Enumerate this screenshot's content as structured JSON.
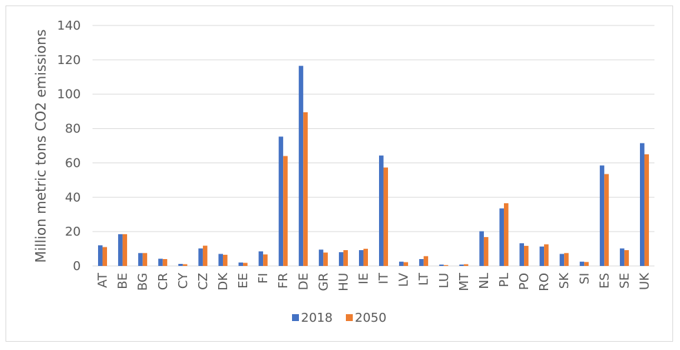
{
  "chart_data": {
    "type": "bar",
    "ylabel": "Million metric tons CO2 emissions",
    "ylim": [
      0,
      140
    ],
    "yticks": [
      "0",
      "20",
      "40",
      "60",
      "80",
      "100",
      "120",
      "140"
    ],
    "grid": true,
    "legend_position": "bottom",
    "categories": [
      "AT",
      "BE",
      "BG",
      "CR",
      "CY",
      "CZ",
      "DK",
      "EE",
      "FI",
      "FR",
      "DE",
      "GR",
      "HU",
      "IE",
      "IT",
      "LV",
      "LT",
      "LU",
      "MT",
      "NL",
      "PL",
      "PO",
      "RO",
      "SK",
      "SI",
      "ES",
      "SE",
      "UK"
    ],
    "series": [
      {
        "name": "2018",
        "color": "#4472c4",
        "values": [
          12,
          18.5,
          7.5,
          4.2,
          1.2,
          10.2,
          7,
          2,
          8.5,
          75.3,
          116.5,
          9.5,
          8,
          9.2,
          64.3,
          2.5,
          4,
          0.8,
          0.8,
          20.2,
          33.5,
          13.2,
          11.3,
          7,
          2.5,
          58.5,
          10.2,
          71.5
        ]
      },
      {
        "name": "2050",
        "color": "#ed7d31",
        "values": [
          11,
          18.5,
          7.5,
          4,
          1,
          11.8,
          6.5,
          1.8,
          6.7,
          64,
          89.5,
          7.8,
          9.2,
          10,
          57.3,
          2.2,
          5.7,
          0.5,
          1,
          16.8,
          36.5,
          11.7,
          12.6,
          7.5,
          2.3,
          53.5,
          9.2,
          65
        ]
      }
    ]
  }
}
